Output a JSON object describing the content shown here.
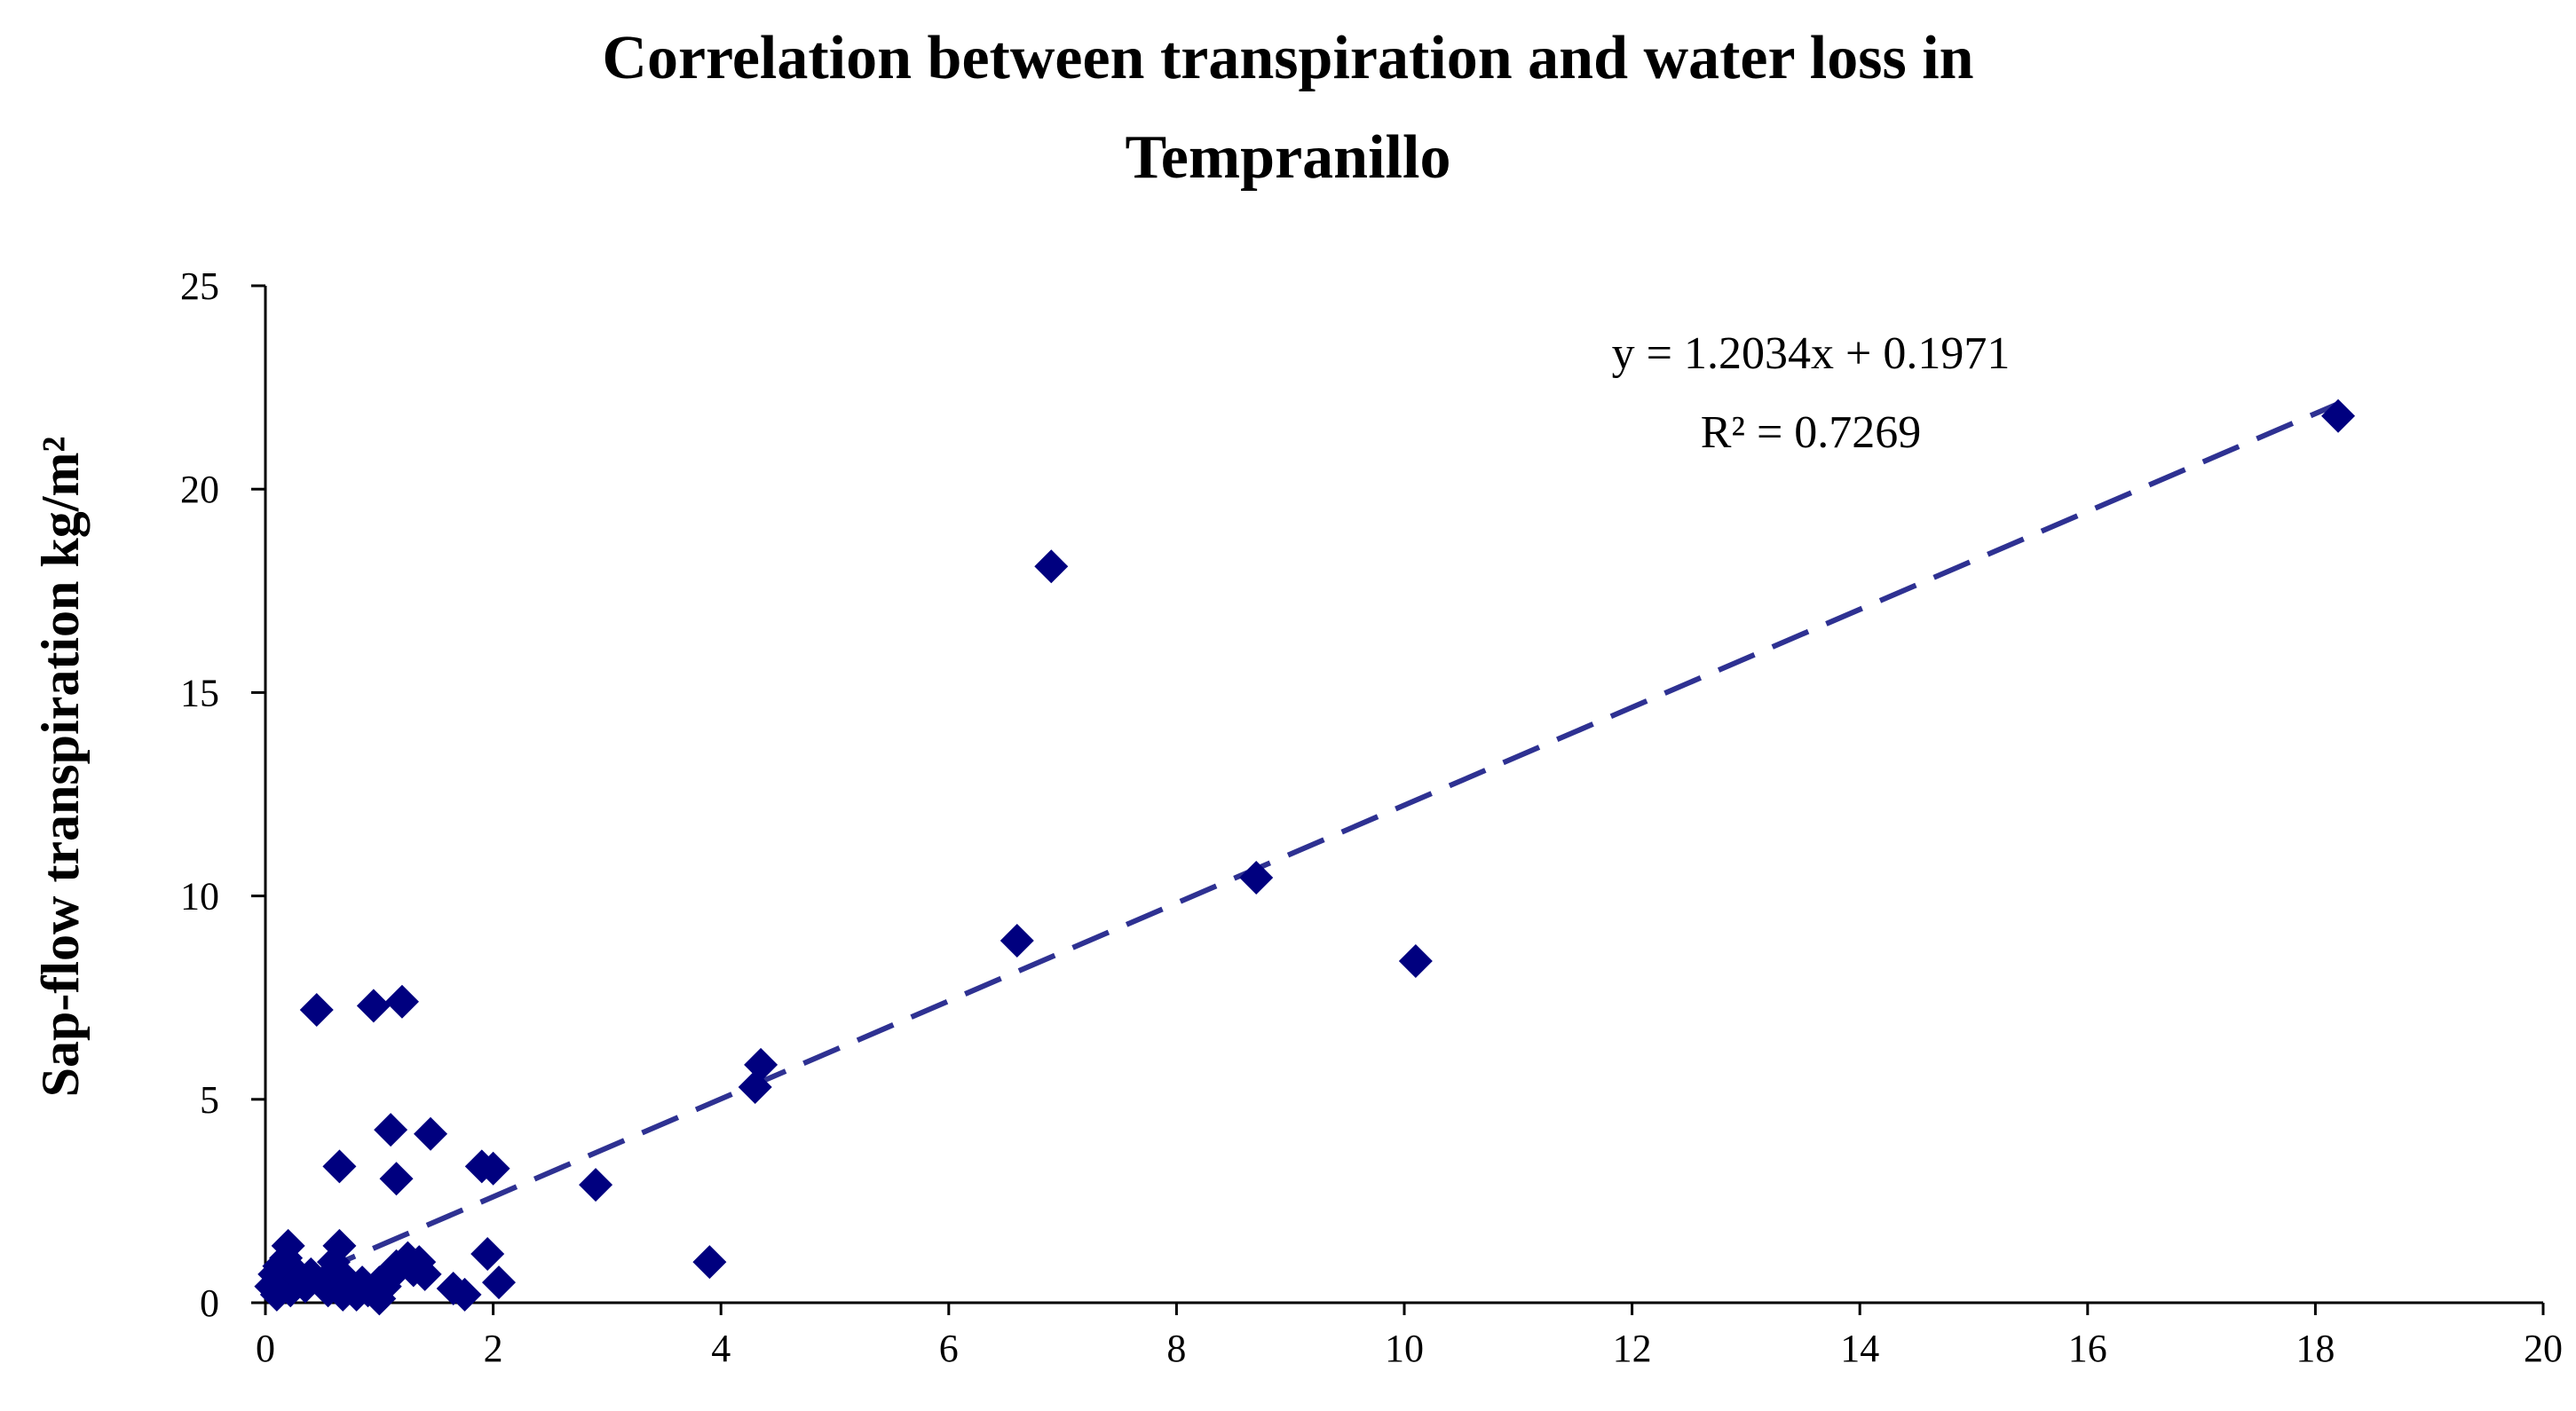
{
  "chart_data": {
    "type": "scatter",
    "title_lines": [
      "Correlation between transpiration and water loss in",
      "Tempranillo"
    ],
    "xlabel": "",
    "ylabel": "Sap-flow transpiration kg/m²",
    "xlim": [
      0,
      20
    ],
    "ylim": [
      0,
      25
    ],
    "xticks": [
      0,
      2,
      4,
      6,
      8,
      10,
      12,
      14,
      16,
      18,
      20
    ],
    "yticks": [
      0,
      5,
      10,
      15,
      20,
      25
    ],
    "grid": false,
    "marker": "diamond",
    "marker_color": "#00007F",
    "trendline_color": "#2E3192",
    "series": [
      {
        "name": "Tempranillo",
        "x": [
          0.05,
          0.08,
          0.1,
          0.12,
          0.15,
          0.18,
          0.2,
          0.22,
          0.25,
          0.3,
          0.35,
          0.4,
          0.45,
          0.5,
          0.55,
          0.6,
          0.65,
          0.65,
          0.68,
          0.7,
          0.75,
          0.8,
          0.85,
          0.9,
          0.95,
          1.0,
          1.0,
          1.05,
          1.1,
          1.12,
          1.15,
          1.15,
          1.2,
          1.25,
          1.3,
          1.35,
          1.4,
          1.45,
          1.65,
          1.75,
          1.9,
          1.95,
          2.0,
          2.05,
          2.9,
          3.9,
          4.3,
          4.35,
          6.6,
          6.9,
          8.7,
          10.1,
          18.2
        ],
        "y": [
          0.4,
          0.7,
          0.2,
          0.9,
          0.5,
          1.1,
          1.4,
          0.3,
          0.8,
          0.6,
          0.4,
          0.7,
          7.2,
          0.5,
          0.3,
          1.0,
          3.35,
          1.4,
          0.2,
          0.6,
          0.4,
          0.2,
          0.5,
          0.3,
          7.3,
          0.1,
          0.5,
          0.4,
          4.25,
          0.7,
          3.05,
          0.9,
          7.4,
          1.1,
          0.8,
          1.0,
          0.7,
          4.15,
          0.35,
          0.2,
          3.35,
          1.2,
          3.3,
          0.5,
          2.9,
          1.0,
          5.3,
          5.85,
          8.9,
          18.1,
          10.45,
          8.4,
          21.8
        ]
      }
    ],
    "trendline": {
      "slope": 1.2034,
      "intercept": 0.1971,
      "x_range": [
        0,
        18.2
      ],
      "equation": "y = 1.2034x + 0.1971",
      "r_squared": "R² = 0.7269"
    }
  }
}
